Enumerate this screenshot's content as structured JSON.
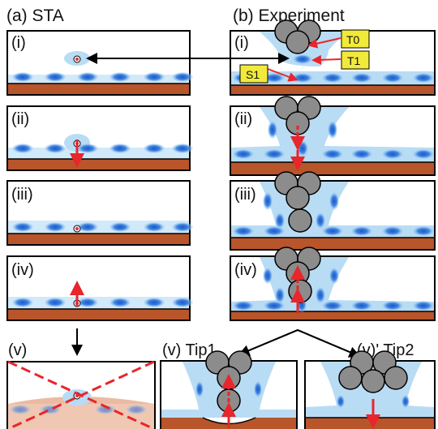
{
  "headers": {
    "sta": "(a) STA",
    "experiment": "(b) Experiment"
  },
  "sta_panels": [
    "(i)",
    "(ii)",
    "(iii)",
    "(iv)",
    "(v)"
  ],
  "exp_panels": [
    "(i)",
    "(ii)",
    "(iii)",
    "(iv)"
  ],
  "tip_panels": {
    "tip1": "(v) Tip1",
    "tip2": "(v)' Tip2"
  },
  "annotations": {
    "t0": "T0",
    "t1": "T1",
    "s1": "S1"
  },
  "colors": {
    "substrate": "#b8552b",
    "blob": "#2f6fd6",
    "halo": "#b9dcf5",
    "ball": "#8c8c8c",
    "arrow": "#e8262b",
    "label_bg": "#f2ea3a"
  }
}
